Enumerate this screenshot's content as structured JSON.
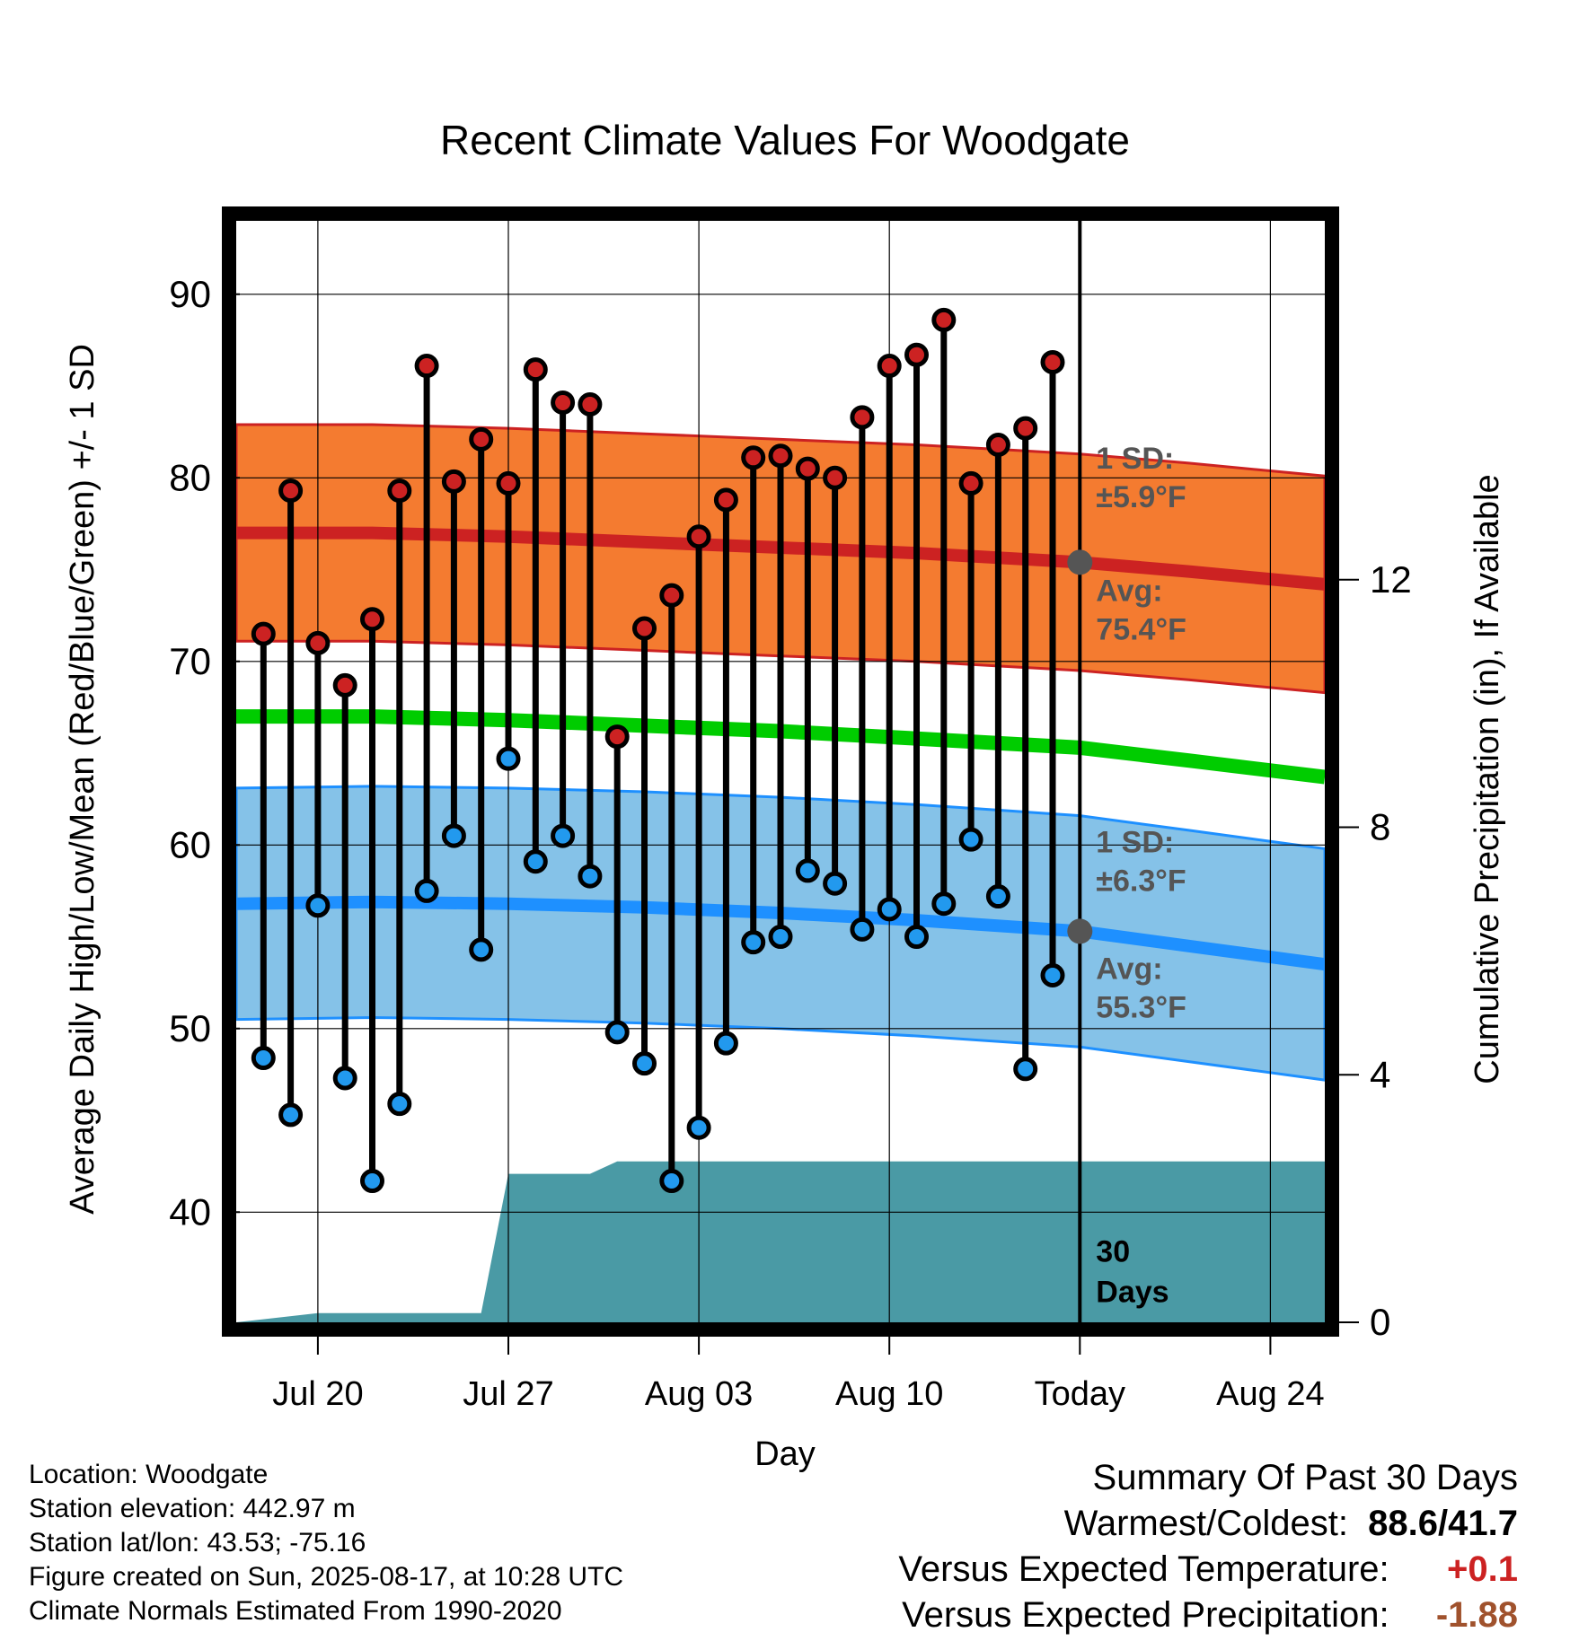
{
  "chart_data": {
    "type": "line",
    "title": "Recent Climate Values For Woodgate",
    "xlabel": "Day",
    "ylabel": "Average Daily High/Low/Mean (Red/Blue/Green) +/- 1 SD",
    "y2label": "Cumulative Precipitation (in), If Available",
    "ylim": [
      34,
      94
    ],
    "y2lim": [
      0,
      17.8
    ],
    "yticks": [
      40,
      50,
      60,
      70,
      80,
      90
    ],
    "y2ticks": [
      0,
      4,
      8,
      12
    ],
    "x_ticks": [
      {
        "date": "Jul 20",
        "label": "Jul 20"
      },
      {
        "date": "Jul 27",
        "label": "Jul 27"
      },
      {
        "date": "Aug 03",
        "label": "Aug 03"
      },
      {
        "date": "Aug 10",
        "label": "Aug 10"
      },
      {
        "date": "Aug 17",
        "label": "Today"
      },
      {
        "date": "Aug 24",
        "label": "Aug 24"
      }
    ],
    "x_range": [
      "Jul 17",
      "Aug 26"
    ],
    "today": "Aug 17",
    "dates": [
      "Jul 18",
      "Jul 19",
      "Jul 20",
      "Jul 21",
      "Jul 22",
      "Jul 23",
      "Jul 24",
      "Jul 25",
      "Jul 26",
      "Jul 27",
      "Jul 28",
      "Jul 29",
      "Jul 30",
      "Jul 31",
      "Aug 01",
      "Aug 02",
      "Aug 03",
      "Aug 04",
      "Aug 05",
      "Aug 06",
      "Aug 07",
      "Aug 08",
      "Aug 09",
      "Aug 10",
      "Aug 11",
      "Aug 12",
      "Aug 13",
      "Aug 14",
      "Aug 15",
      "Aug 16"
    ],
    "series": [
      {
        "name": "High",
        "color": "#cc2222",
        "values": [
          71.5,
          79.3,
          71.0,
          68.7,
          72.3,
          79.3,
          86.1,
          79.8,
          82.1,
          79.7,
          85.9,
          84.1,
          84.0,
          65.9,
          71.8,
          73.6,
          76.8,
          78.8,
          81.1,
          81.2,
          80.5,
          80.0,
          83.3,
          86.1,
          86.7,
          88.6,
          79.7,
          81.8,
          82.7,
          86.3
        ]
      },
      {
        "name": "Low",
        "color": "#2299ee",
        "values": [
          48.4,
          45.3,
          56.7,
          47.3,
          41.7,
          45.9,
          57.5,
          60.5,
          54.3,
          64.7,
          59.1,
          60.5,
          58.3,
          49.8,
          48.1,
          41.7,
          44.6,
          49.2,
          54.7,
          55.0,
          58.6,
          57.9,
          55.4,
          56.5,
          55.0,
          56.8,
          60.3,
          57.2,
          47.8,
          52.9
        ]
      }
    ],
    "normals": {
      "dates": [
        "Jul 17",
        "Jul 22",
        "Jul 27",
        "Aug 01",
        "Aug 06",
        "Aug 11",
        "Aug 17",
        "Aug 21",
        "Aug 26"
      ],
      "high_mean": [
        77.0,
        77.0,
        76.8,
        76.5,
        76.2,
        75.9,
        75.4,
        74.9,
        74.2
      ],
      "low_mean": [
        56.8,
        56.9,
        56.8,
        56.6,
        56.3,
        55.9,
        55.3,
        54.5,
        53.5
      ],
      "mean": [
        67.0,
        67.0,
        66.8,
        66.5,
        66.2,
        65.8,
        65.3,
        64.6,
        63.7
      ],
      "high_sd": 5.9,
      "low_sd": 6.3
    },
    "precip_cumulative": {
      "dates": [
        "Jul 17",
        "Jul 20",
        "Jul 26",
        "Jul 27",
        "Jul 30",
        "Jul 31",
        "Aug 26"
      ],
      "values": [
        0,
        0.15,
        0.15,
        2.4,
        2.4,
        2.6,
        2.6
      ]
    },
    "annotations": {
      "high_sd": "1 SD:",
      "high_sd_val": "±5.9°F",
      "high_avg": "Avg:",
      "high_avg_val": "75.4°F",
      "low_sd": "1 SD:",
      "low_sd_val": "±6.3°F",
      "low_avg": "Avg:",
      "low_avg_val": "55.3°F",
      "days_num": "30",
      "days_word": "Days"
    },
    "colors": {
      "high_band": "#f47b30",
      "high_line": "#cc2222",
      "low_band": "#85c2e8",
      "low_line": "#1e90ff",
      "mean_line": "#00cc00",
      "precip": "#4a9aa5",
      "annotation": "#555555"
    },
    "legend": "none",
    "grid": true
  },
  "info": {
    "location": "Location: Woodgate",
    "elevation": "Station elevation: 442.97 m",
    "latlon": "Station lat/lon: 43.53; -75.16",
    "created": "Figure created on Sun, 2025-08-17, at 10:28 UTC",
    "normals": "Climate Normals Estimated From 1990-2020"
  },
  "summary": {
    "heading": "Summary Of Past 30 Days",
    "warm_label": "Warmest/Coldest:",
    "warm_value": "88.6/41.7",
    "temp_label": "Versus Expected Temperature:",
    "temp_value": "+0.1",
    "temp_color": "#cc2222",
    "precip_label": "Versus Expected Precipitation:",
    "precip_value": "-1.88",
    "precip_color": "#a0522d"
  }
}
